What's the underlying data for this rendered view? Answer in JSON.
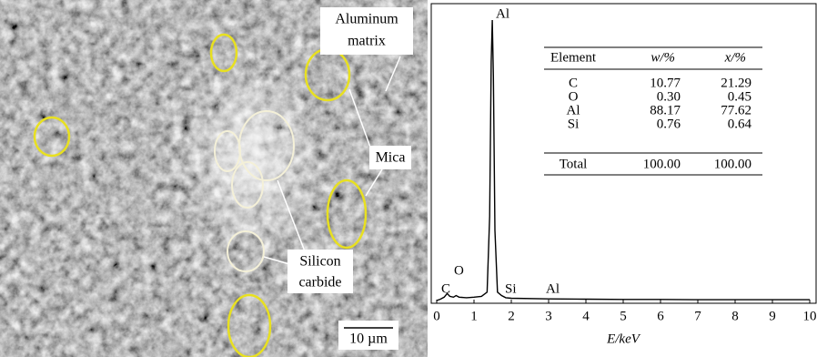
{
  "micrograph": {
    "aluminum_matrix": [
      "Aluminum",
      "matrix"
    ],
    "mica": "Mica",
    "silicon_carbide": [
      "Silicon",
      "carbide"
    ],
    "scale_bar": "10 µm"
  },
  "chart_data": {
    "type": "line",
    "x_label": "E/keV",
    "xlim": [
      0,
      10
    ],
    "xticks": [
      0,
      1,
      2,
      3,
      4,
      5,
      6,
      7,
      8,
      9,
      10
    ],
    "ylim": [
      0,
      100
    ],
    "color": "#000000",
    "x": [
      0,
      0.1,
      0.2,
      0.28,
      0.35,
      0.45,
      0.52,
      0.6,
      0.8,
      1.0,
      1.2,
      1.35,
      1.42,
      1.46,
      1.49,
      1.52,
      1.56,
      1.63,
      1.74,
      1.85,
      2.0,
      3,
      4,
      5,
      6,
      7,
      8,
      9,
      10
    ],
    "values": [
      0,
      0.5,
      1.2,
      2.5,
      1.5,
      1.2,
      1.8,
      1.2,
      1,
      1.2,
      1.5,
      3,
      30,
      85,
      100,
      80,
      25,
      3,
      1.8,
      1,
      0.8,
      0.6,
      0.5,
      0.4,
      0.4,
      0.3,
      0.3,
      0.3,
      0.3
    ],
    "annotations": [
      "Al",
      "C",
      "O",
      "Si",
      "Al"
    ],
    "table": {
      "header": [
        "Element",
        "w/%",
        "x/%"
      ],
      "rows": [
        [
          "C",
          "10.77",
          "21.29"
        ],
        [
          "O",
          "0.30",
          "0.45"
        ],
        [
          "Al",
          "88.17",
          "77.62"
        ],
        [
          "Si",
          "0.76",
          "0.64"
        ],
        [
          "Total",
          "100.00",
          "100.00"
        ]
      ]
    }
  }
}
